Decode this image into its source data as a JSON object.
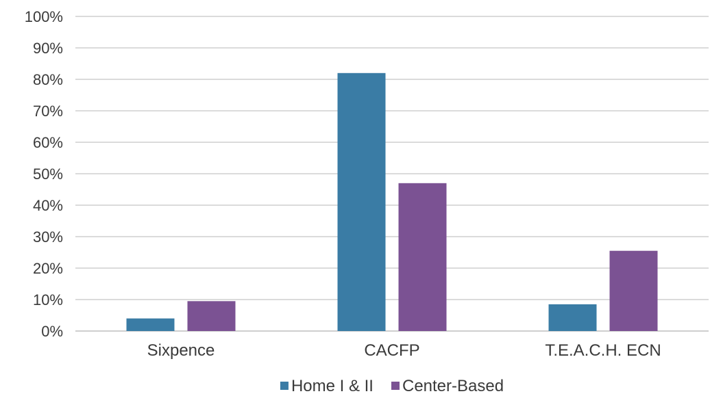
{
  "chart_data": {
    "type": "bar",
    "categories": [
      "Sixpence",
      "CACFP",
      "T.E.A.C.H. ECN"
    ],
    "series": [
      {
        "name": "Home I & II",
        "color": "#3a7ca5",
        "values": [
          4,
          82,
          8.5
        ]
      },
      {
        "name": "Center-Based",
        "color": "#7b5293",
        "values": [
          9.5,
          47,
          25.5
        ]
      }
    ],
    "y_ticks": [
      "0%",
      "10%",
      "20%",
      "30%",
      "40%",
      "50%",
      "60%",
      "70%",
      "80%",
      "90%",
      "100%"
    ],
    "ylim": [
      0,
      100
    ],
    "grid": true,
    "legend_position": "bottom-center",
    "title": "",
    "xlabel": "",
    "ylabel": ""
  }
}
